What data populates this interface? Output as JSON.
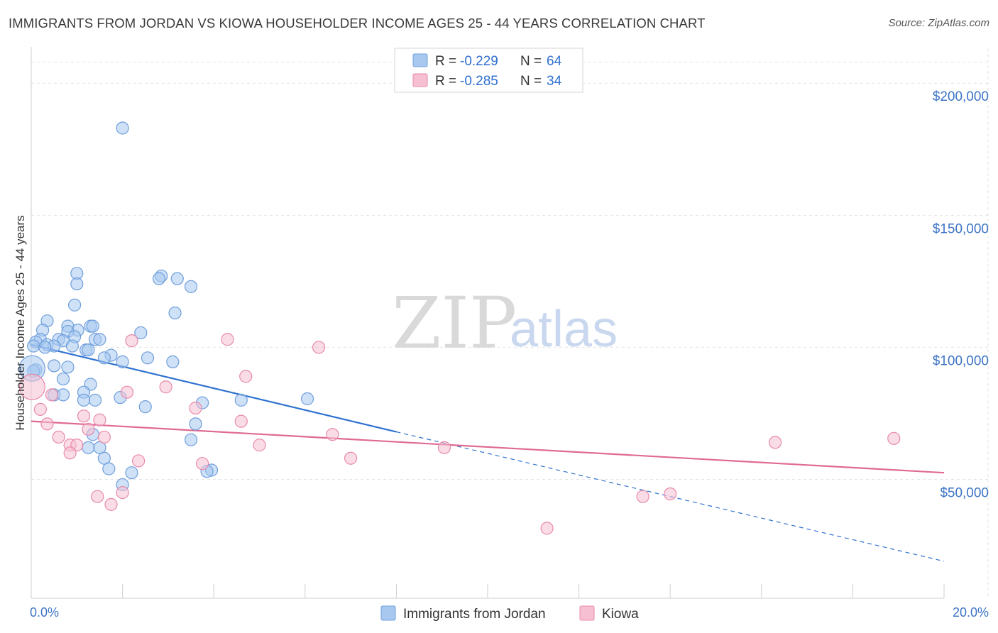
{
  "header": {
    "title": "IMMIGRANTS FROM JORDAN VS KIOWA HOUSEHOLDER INCOME AGES 25 - 44 YEARS CORRELATION CHART",
    "source": "Source: ZipAtlas.com"
  },
  "watermark": {
    "zip": "ZIP",
    "atlas": "atlas"
  },
  "stats_legend": [
    {
      "r_label": "R = ",
      "r_value": "-0.229",
      "n_label": "N = ",
      "n_value": "64"
    },
    {
      "r_label": "R = ",
      "r_value": "-0.285",
      "n_label": "N = ",
      "n_value": "34"
    }
  ],
  "colors": {
    "jordan_fill": "#a8c8f0",
    "jordan_stroke": "#6f9fdc",
    "jordan_line": "#2f72d0",
    "kiowa_fill": "#f6bfd2",
    "kiowa_stroke": "#e88aab",
    "kiowa_line": "#e06a92",
    "tick_text": "#3d74c6",
    "grid": "#e2e2e2"
  },
  "chart_data": {
    "type": "scatter",
    "title": "IMMIGRANTS FROM JORDAN VS KIOWA HOUSEHOLDER INCOME AGES 25 - 44 YEARS CORRELATION CHART",
    "xlabel": "",
    "ylabel": "Householder Income Ages 25 - 44 years",
    "xlim": [
      0,
      20
    ],
    "ylim": [
      5000,
      210000
    ],
    "x_tick_labels": [
      "0.0%",
      "20.0%"
    ],
    "y_ticks": [
      50000,
      100000,
      150000,
      200000
    ],
    "y_tick_labels": [
      "$50,000",
      "$100,000",
      "$150,000",
      "$200,000"
    ],
    "grid": true,
    "legend_position": "bottom",
    "series": [
      {
        "name": "Immigrants from Jordan",
        "r": -0.229,
        "n": 64,
        "trend": {
          "x0": 0.0,
          "y0": 101000,
          "x1": 8.0,
          "y1": 68000,
          "dash_to_x": 20.0,
          "dash_to_y": 19000
        },
        "points": [
          [
            2.0,
            183000
          ],
          [
            1.0,
            128000
          ],
          [
            2.85,
            127000
          ],
          [
            2.8,
            126000
          ],
          [
            3.2,
            126000
          ],
          [
            1.0,
            124000
          ],
          [
            3.5,
            123000
          ],
          [
            0.95,
            116000
          ],
          [
            3.15,
            113000
          ],
          [
            0.35,
            110000
          ],
          [
            0.8,
            108000
          ],
          [
            1.3,
            108000
          ],
          [
            1.35,
            108000
          ],
          [
            0.25,
            106500
          ],
          [
            1.02,
            106500
          ],
          [
            0.8,
            106000
          ],
          [
            2.4,
            105500
          ],
          [
            0.95,
            104000
          ],
          [
            0.2,
            103000
          ],
          [
            0.6,
            103000
          ],
          [
            1.4,
            103000
          ],
          [
            1.5,
            103000
          ],
          [
            0.7,
            102500
          ],
          [
            0.1,
            102000
          ],
          [
            0.35,
            101000
          ],
          [
            0.9,
            100500
          ],
          [
            0.5,
            100500
          ],
          [
            0.05,
            100500
          ],
          [
            0.3,
            100000
          ],
          [
            1.2,
            99000
          ],
          [
            1.25,
            99000
          ],
          [
            1.75,
            97000
          ],
          [
            1.6,
            96000
          ],
          [
            2.55,
            96000
          ],
          [
            2.0,
            94500
          ],
          [
            3.1,
            94500
          ],
          [
            0.5,
            93000
          ],
          [
            0.8,
            92500
          ],
          [
            0.1,
            91500
          ],
          [
            0.05,
            91000
          ],
          [
            0.7,
            88000
          ],
          [
            1.3,
            86000
          ],
          [
            1.15,
            83000
          ],
          [
            0.5,
            82000
          ],
          [
            0.7,
            82000
          ],
          [
            1.95,
            81000
          ],
          [
            6.05,
            80500
          ],
          [
            1.4,
            80000
          ],
          [
            1.15,
            80000
          ],
          [
            4.6,
            80000
          ],
          [
            3.75,
            79000
          ],
          [
            2.5,
            77500
          ],
          [
            3.6,
            71000
          ],
          [
            1.35,
            67000
          ],
          [
            3.5,
            65000
          ],
          [
            1.25,
            62000
          ],
          [
            1.5,
            62000
          ],
          [
            1.6,
            58000
          ],
          [
            1.7,
            54000
          ],
          [
            3.95,
            53500
          ],
          [
            3.85,
            53000
          ],
          [
            2.2,
            52500
          ],
          [
            2.0,
            48000
          ],
          [
            0.02,
            92000
          ]
        ]
      },
      {
        "name": "Kiowa",
        "r": -0.285,
        "n": 34,
        "trend": {
          "x0": 0.0,
          "y0": 72000,
          "x1": 20.0,
          "y1": 52500
        },
        "points": [
          [
            4.3,
            103000
          ],
          [
            2.2,
            102500
          ],
          [
            6.3,
            100000
          ],
          [
            4.7,
            89000
          ],
          [
            2.95,
            85000
          ],
          [
            2.1,
            83000
          ],
          [
            0.45,
            82000
          ],
          [
            3.6,
            77000
          ],
          [
            0.2,
            76500
          ],
          [
            1.15,
            74000
          ],
          [
            1.5,
            72500
          ],
          [
            4.6,
            72000
          ],
          [
            0.35,
            71000
          ],
          [
            1.25,
            69000
          ],
          [
            6.6,
            67000
          ],
          [
            0.6,
            66000
          ],
          [
            1.6,
            66000
          ],
          [
            16.3,
            64000
          ],
          [
            18.9,
            65500
          ],
          [
            0.85,
            63000
          ],
          [
            1.0,
            63000
          ],
          [
            5.0,
            63000
          ],
          [
            9.05,
            62000
          ],
          [
            0.85,
            60000
          ],
          [
            7.0,
            58000
          ],
          [
            2.35,
            57000
          ],
          [
            3.75,
            56000
          ],
          [
            2.0,
            45000
          ],
          [
            1.45,
            43500
          ],
          [
            13.4,
            43500
          ],
          [
            14.0,
            44500
          ],
          [
            1.75,
            40500
          ],
          [
            11.3,
            31500
          ],
          [
            0.02,
            85000
          ]
        ]
      }
    ]
  }
}
